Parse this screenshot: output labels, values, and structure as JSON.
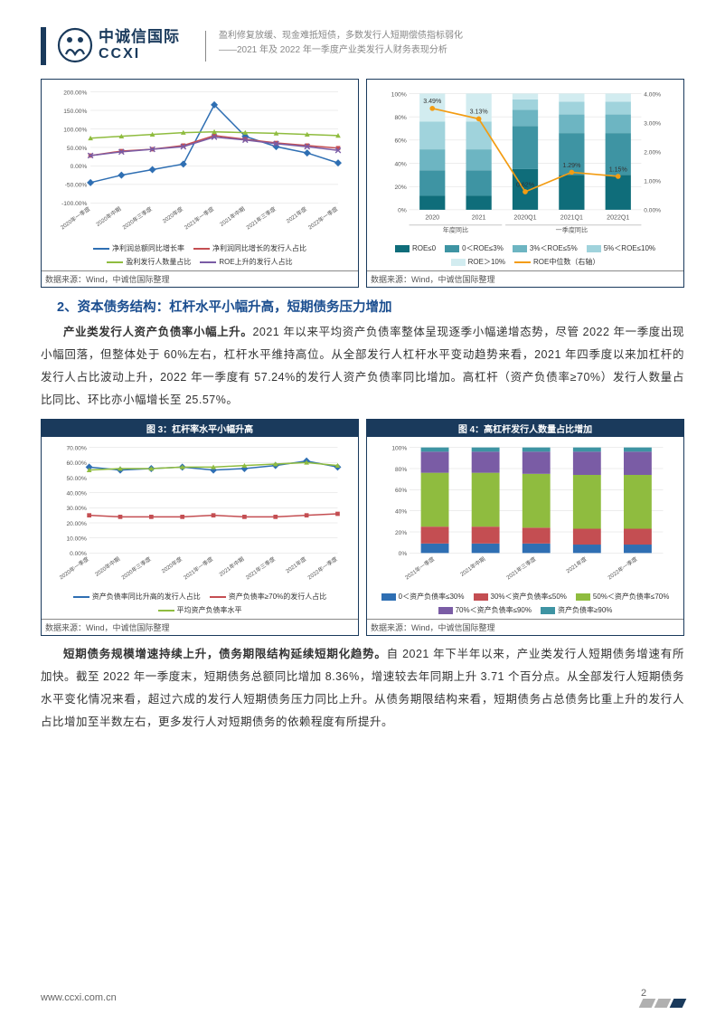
{
  "header": {
    "logo_cn": "中诚信国际",
    "logo_en": "CCXI",
    "sub1": "盈利修复放缓、现金难抵短债，多数发行人短期偿债指标弱化",
    "sub2": "——2021 年及 2022 年一季度产业类发行人财务表现分析"
  },
  "chart1": {
    "ylim": [
      -100,
      200
    ],
    "ytick_step": 50,
    "x_labels": [
      "2020年一季度",
      "2020年中期",
      "2020年三季度",
      "2020年度",
      "2021年一季度",
      "2021年中期",
      "2021年三季度",
      "2021年度",
      "2022年一季度"
    ],
    "series": [
      {
        "name": "净利润总额同比增长率",
        "color": "#2f6fb3",
        "marker": "diamond",
        "values": [
          -45,
          -25,
          -10,
          5,
          165,
          80,
          52,
          35,
          8
        ]
      },
      {
        "name": "净利润同比增长的发行人占比",
        "color": "#c44e52",
        "marker": "square",
        "values": [
          28,
          40,
          45,
          55,
          82,
          72,
          62,
          55,
          48
        ]
      },
      {
        "name": "盈利发行人数量占比",
        "color": "#8fbc3f",
        "marker": "triangle",
        "values": [
          75,
          80,
          85,
          90,
          92,
          90,
          88,
          85,
          82
        ]
      },
      {
        "name": "ROE上升的发行人占比",
        "color": "#7a5ca5",
        "marker": "cross",
        "values": [
          28,
          38,
          45,
          52,
          78,
          70,
          60,
          52,
          42
        ]
      }
    ],
    "source": "数据来源：Wind，中诚信国际整理",
    "grid_color": "#d9d9d9",
    "axis_color": "#888"
  },
  "chart2": {
    "x_labels": [
      "2020",
      "2021",
      "2020Q1",
      "2021Q1",
      "2022Q1"
    ],
    "x_group1": "年度同比",
    "x_group2": "一季度同比",
    "ylim_left": [
      0,
      100
    ],
    "ytick_left": 20,
    "ylim_right": [
      0,
      4
    ],
    "ytick_right": 1,
    "stack_keys": [
      "ROE≤0",
      "0＜ROE≤3%",
      "3%＜ROE≤5%",
      "5%＜ROE≤10%",
      "ROE＞10%"
    ],
    "stack_colors": [
      "#0f6d7a",
      "#3e94a3",
      "#6db5c2",
      "#a0d3dc",
      "#d2ecf0"
    ],
    "stacks": [
      [
        12,
        22,
        18,
        24,
        24
      ],
      [
        12,
        22,
        18,
        24,
        24
      ],
      [
        35,
        37,
        14,
        9,
        5
      ],
      [
        30,
        36,
        16,
        11,
        7
      ],
      [
        30,
        36,
        16,
        11,
        7
      ]
    ],
    "line": {
      "name": "ROE中位数（右轴）",
      "color": "#f39c12",
      "values": [
        3.49,
        3.13,
        0.62,
        1.29,
        1.15
      ],
      "labels": [
        "3.49%",
        "3.13%",
        "0.62%",
        "1.29%",
        "1.15%"
      ]
    },
    "source": "数据来源：Wind，中诚信国际整理"
  },
  "section2": {
    "title": "2、资本债务结构：杠杆水平小幅升高，短期债务压力增加",
    "p1_lead": "产业类发行人资产负债率小幅上升。",
    "p1_body": "2021 年以来平均资产负债率整体呈现逐季小幅递增态势，尽管 2022 年一季度出现小幅回落，但整体处于 60%左右，杠杆水平维持高位。从全部发行人杠杆水平变动趋势来看，2021 年四季度以来加杠杆的发行人占比波动上升，2022 年一季度有 57.24%的发行人资产负债率同比增加。高杠杆（资产负债率≥70%）发行人数量占比同比、环比亦小幅增长至 25.57%。"
  },
  "chart3": {
    "title": "图 3：杠杆率水平小幅升高",
    "ylim": [
      0,
      70
    ],
    "ytick_step": 10,
    "x_labels": [
      "2020年一季度",
      "2020年中期",
      "2020年三季度",
      "2020年度",
      "2021年一季度",
      "2021年中期",
      "2021年三季度",
      "2021年度",
      "2022年一季度"
    ],
    "series": [
      {
        "name": "资产负债率同比升高的发行人占比",
        "color": "#2f6fb3",
        "marker": "diamond",
        "values": [
          57,
          55,
          56,
          57,
          55,
          56,
          58,
          61,
          57
        ]
      },
      {
        "name": "资产负债率≥70%的发行人占比",
        "color": "#c44e52",
        "marker": "square",
        "values": [
          25,
          24,
          24,
          24,
          25,
          24,
          24,
          25,
          26
        ]
      },
      {
        "name": "平均资产负债率水平",
        "color": "#8fbc3f",
        "marker": "triangle",
        "values": [
          55,
          56,
          56,
          57,
          57,
          58,
          59,
          60,
          58
        ]
      }
    ],
    "source": "数据来源：Wind，中诚信国际整理"
  },
  "chart4": {
    "title": "图 4：高杠杆发行人数量占比增加",
    "ylim": [
      0,
      100
    ],
    "ytick_step": 20,
    "x_labels": [
      "2021年一季度",
      "2021年中期",
      "2021年三季度",
      "2021年度",
      "2022年一季度"
    ],
    "stack_keys": [
      "0＜资产负债率≤30%",
      "30%＜资产负债率≤50%",
      "50%＜资产负债率≤70%",
      "70%＜资产负债率≤90%",
      "资产负债率≥90%"
    ],
    "stack_colors": [
      "#2f6fb3",
      "#c44e52",
      "#8fbc3f",
      "#7a5ca5",
      "#3e94a3"
    ],
    "stacks": [
      [
        9,
        16,
        51,
        20,
        4
      ],
      [
        9,
        16,
        51,
        20,
        4
      ],
      [
        9,
        15,
        51,
        21,
        4
      ],
      [
        8,
        15,
        51,
        22,
        4
      ],
      [
        8,
        15,
        51,
        22,
        4
      ]
    ],
    "source": "数据来源：Wind，中诚信国际整理"
  },
  "para2": {
    "lead": "短期债务规模增速持续上升，债务期限结构延续短期化趋势。",
    "body": "自 2021 年下半年以来，产业类发行人短期债务增速有所加快。截至 2022 年一季度末，短期债务总额同比增加 8.36%，增速较去年同期上升 3.71 个百分点。从全部发行人短期债务水平变化情况来看，超过六成的发行人短期债务压力同比上升。从债务期限结构来看，短期债务占总债务比重上升的发行人占比增加至半数左右，更多发行人对短期债务的依赖程度有所提升。"
  },
  "footer": {
    "url": "www.ccxi.com.cn",
    "page": "2"
  }
}
